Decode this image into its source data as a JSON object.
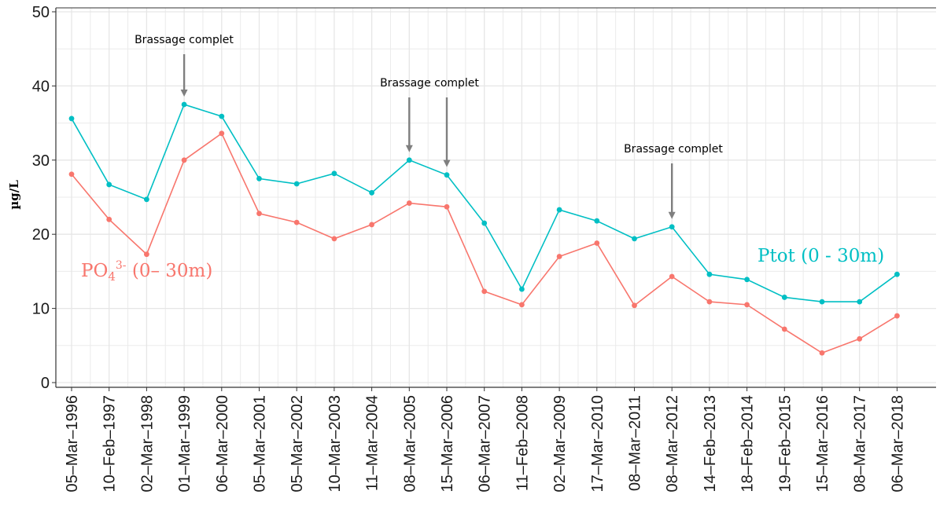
{
  "chart_data": {
    "type": "line",
    "title": "",
    "xlabel": "",
    "ylabel": "µg/L",
    "ylim": [
      0,
      50
    ],
    "yticks": [
      0,
      10,
      20,
      30,
      40,
      50
    ],
    "grid": true,
    "colors": {
      "ptot": "#00BFC4",
      "po4": "#F8766D",
      "arrow": "#7f7f7f",
      "grid": "#ebebeb"
    },
    "categories": [
      "05–Mar–1996",
      "10–Feb–1997",
      "02–Mar–1998",
      "01–Mar–1999",
      "06–Mar–2000",
      "05–Mar–2001",
      "05–Mar–2002",
      "10–Mar–2003",
      "11–Mar–2004",
      "08–Mar–2005",
      "15–Mar–2006",
      "06–Mar–2007",
      "11–Feb–2008",
      "02–Mar–2009",
      "17–Mar–2010",
      "08–Mar–2011",
      "08–Mar–2012",
      "14–Feb–2013",
      "18–Feb–2014",
      "19–Feb–2015",
      "15–Mar–2016",
      "08–Mar–2017",
      "06–Mar–2018"
    ],
    "series": [
      {
        "key": "ptot",
        "name": "Ptot (0 - 30m)",
        "values": [
          35.6,
          26.7,
          24.7,
          37.5,
          35.9,
          27.5,
          26.8,
          28.2,
          25.6,
          30.0,
          28.0,
          21.5,
          12.6,
          23.3,
          21.8,
          19.4,
          21.0,
          14.6,
          13.9,
          11.5,
          10.9,
          10.9,
          14.6
        ]
      },
      {
        "key": "po4",
        "name_main": "PO",
        "name_sub": "4",
        "name_sup": "3-",
        "name_rest": " (0– 30m)",
        "values": [
          28.1,
          22.0,
          17.3,
          30.0,
          33.6,
          22.8,
          21.6,
          19.4,
          21.3,
          24.2,
          23.7,
          12.3,
          10.5,
          17.0,
          18.8,
          10.4,
          14.3,
          10.9,
          10.5,
          7.2,
          4.0,
          5.9,
          9.0
        ]
      }
    ],
    "annotations": [
      {
        "text": "Brassage complet",
        "arrows": [
          "01–Mar–1999"
        ]
      },
      {
        "text": "Brassage complet",
        "arrows": [
          "08–Mar–2005",
          "15–Mar–2006"
        ]
      },
      {
        "text": "Brassage complet",
        "arrows": [
          "08–Mar–2012"
        ]
      }
    ]
  }
}
